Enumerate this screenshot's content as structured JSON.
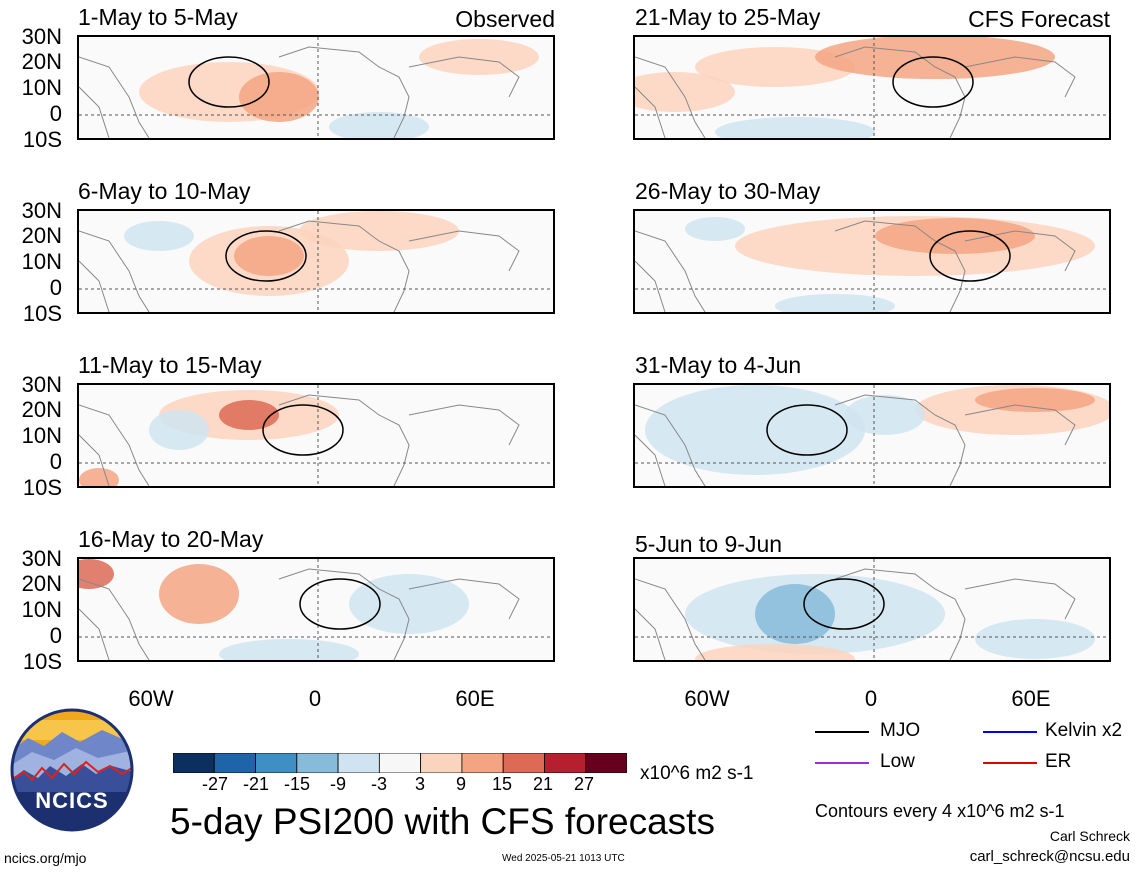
{
  "main_title": "5-day PSI200 with CFS forecasts",
  "left_column_header": "Observed",
  "right_column_header": "CFS Forecast",
  "panels_left": [
    "1-May to 5-May",
    "6-May to 10-May",
    "11-May to 15-May",
    "16-May to 20-May"
  ],
  "panels_right": [
    "21-May to 25-May",
    "26-May to 30-May",
    "31-May to 4-Jun",
    "5-Jun to 9-Jun"
  ],
  "lat_labels": [
    "30N",
    "20N",
    "10N",
    "0",
    "10S"
  ],
  "lon_labels": [
    "60W",
    "0",
    "60E"
  ],
  "colorbar": {
    "ticks": [
      "-27",
      "-21",
      "-15",
      "-9",
      "-3",
      "3",
      "9",
      "15",
      "21",
      "27"
    ],
    "units": "x10^6 m2 s-1",
    "colors": [
      "#0b2f5e",
      "#1f63a8",
      "#3f8fc4",
      "#86bbd9",
      "#cfe4f0",
      "#f7f7f7",
      "#fbd4bd",
      "#f3a583",
      "#dc6a55",
      "#b6202e",
      "#67001f"
    ]
  },
  "legend": {
    "items": [
      {
        "label": "MJO",
        "color": "#000000"
      },
      {
        "label": "Kelvin x2",
        "color": "#0000ff"
      },
      {
        "label": "Low",
        "color": "#9b30d9"
      },
      {
        "label": "ER",
        "color": "#e00000"
      }
    ],
    "contour_note": "Contours every 4 x10^6 m2 s-1"
  },
  "credits": {
    "author": "Carl Schreck",
    "email": "carl_schreck@ncsu.edu",
    "url": "ncics.org/mjo",
    "timestamp": "Wed 2025-05-21 1013 UTC",
    "logo_text": "NCICS"
  }
}
